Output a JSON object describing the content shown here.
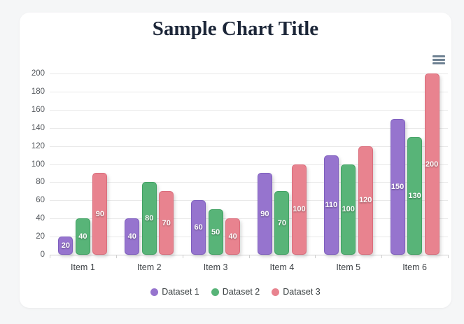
{
  "window": {
    "background_color": "#f5f6f7",
    "card_background_color": "#ffffff"
  },
  "toolbar": {
    "menu_icon": "hamburger-menu-icon",
    "menu_icon_color": "#6e8192"
  },
  "chart_data": {
    "type": "bar",
    "title": "Sample Chart Title",
    "title_color": "#1c2638",
    "categories": [
      "Item 1",
      "Item 2",
      "Item 3",
      "Item 4",
      "Item 5",
      "Item 6"
    ],
    "series": [
      {
        "name": "Dataset 1",
        "color": "#9674ce",
        "stroke": "#7e5fbe",
        "values": [
          20,
          40,
          60,
          90,
          110,
          150
        ]
      },
      {
        "name": "Dataset 2",
        "color": "#58b478",
        "stroke": "#41a263",
        "values": [
          40,
          80,
          50,
          70,
          100,
          130
        ]
      },
      {
        "name": "Dataset 3",
        "color": "#e8838f",
        "stroke": "#da6d7c",
        "values": [
          90,
          70,
          40,
          100,
          120,
          200
        ]
      }
    ],
    "data_labels": {
      "enabled": true,
      "color": "#ffffff"
    },
    "xlabel": "",
    "ylabel": "",
    "ylim": [
      0,
      200
    ],
    "yticks": [
      0,
      20,
      40,
      60,
      80,
      100,
      120,
      140,
      160,
      180,
      200
    ],
    "grid": {
      "show": true,
      "color": "#e9e9e9",
      "axis_color": "#cfcfcf"
    },
    "legend_position": "bottom"
  }
}
